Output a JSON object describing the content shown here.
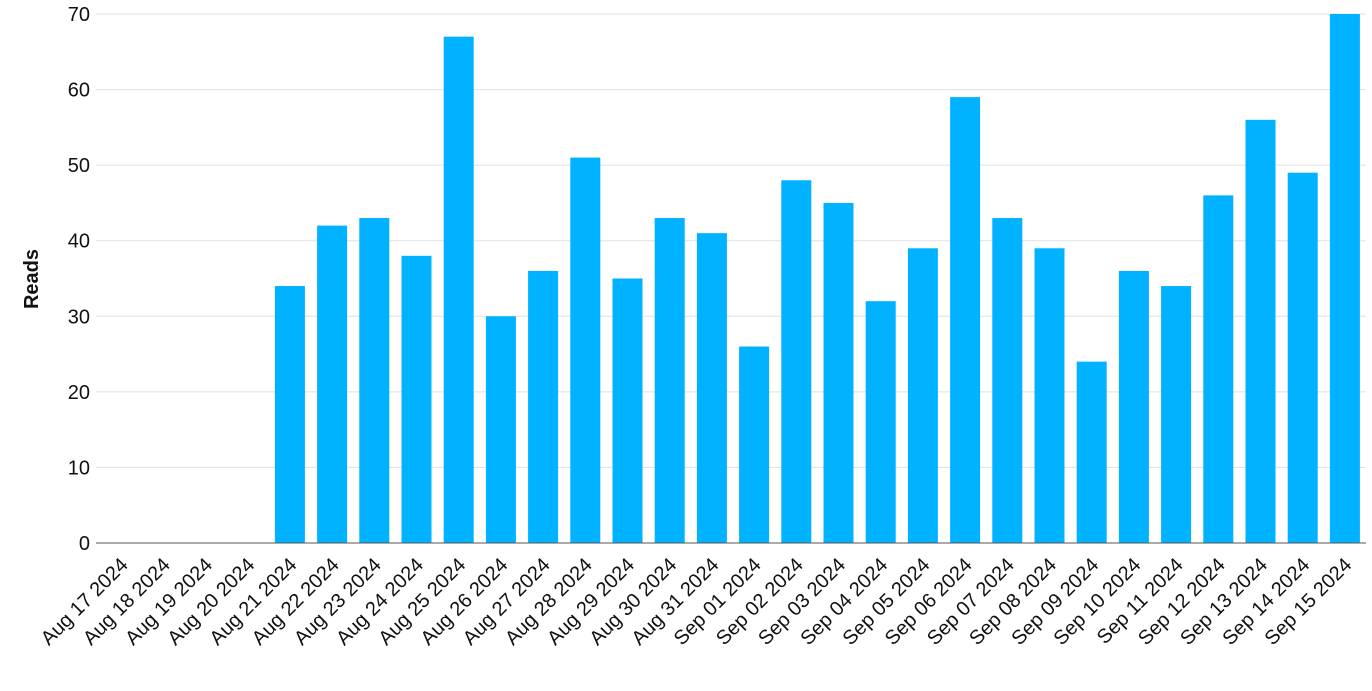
{
  "chart_data": {
    "type": "bar",
    "y_label": "Reads",
    "categories": [
      "Aug 17 2024",
      "Aug 18 2024",
      "Aug 19 2024",
      "Aug 20 2024",
      "Aug 21 2024",
      "Aug 22 2024",
      "Aug 23 2024",
      "Aug 24 2024",
      "Aug 25 2024",
      "Aug 26 2024",
      "Aug 27 2024",
      "Aug 28 2024",
      "Aug 29 2024",
      "Aug 30 2024",
      "Aug 31 2024",
      "Sep 01 2024",
      "Sep 02 2024",
      "Sep 03 2024",
      "Sep 04 2024",
      "Sep 05 2024",
      "Sep 06 2024",
      "Sep 07 2024",
      "Sep 08 2024",
      "Sep 09 2024",
      "Sep 10 2024",
      "Sep 11 2024",
      "Sep 12 2024",
      "Sep 13 2024",
      "Sep 14 2024",
      "Sep 15 2024"
    ],
    "values": [
      0,
      0,
      0,
      0,
      34,
      42,
      43,
      38,
      67,
      30,
      36,
      51,
      35,
      43,
      41,
      26,
      48,
      45,
      32,
      39,
      59,
      43,
      39,
      24,
      36,
      34,
      46,
      56,
      49,
      70
    ],
    "color": "#00b2ff",
    "ylim": [
      0,
      70
    ],
    "yticks": [
      0,
      10,
      20,
      30,
      40,
      50,
      60,
      70
    ],
    "grid": true
  }
}
